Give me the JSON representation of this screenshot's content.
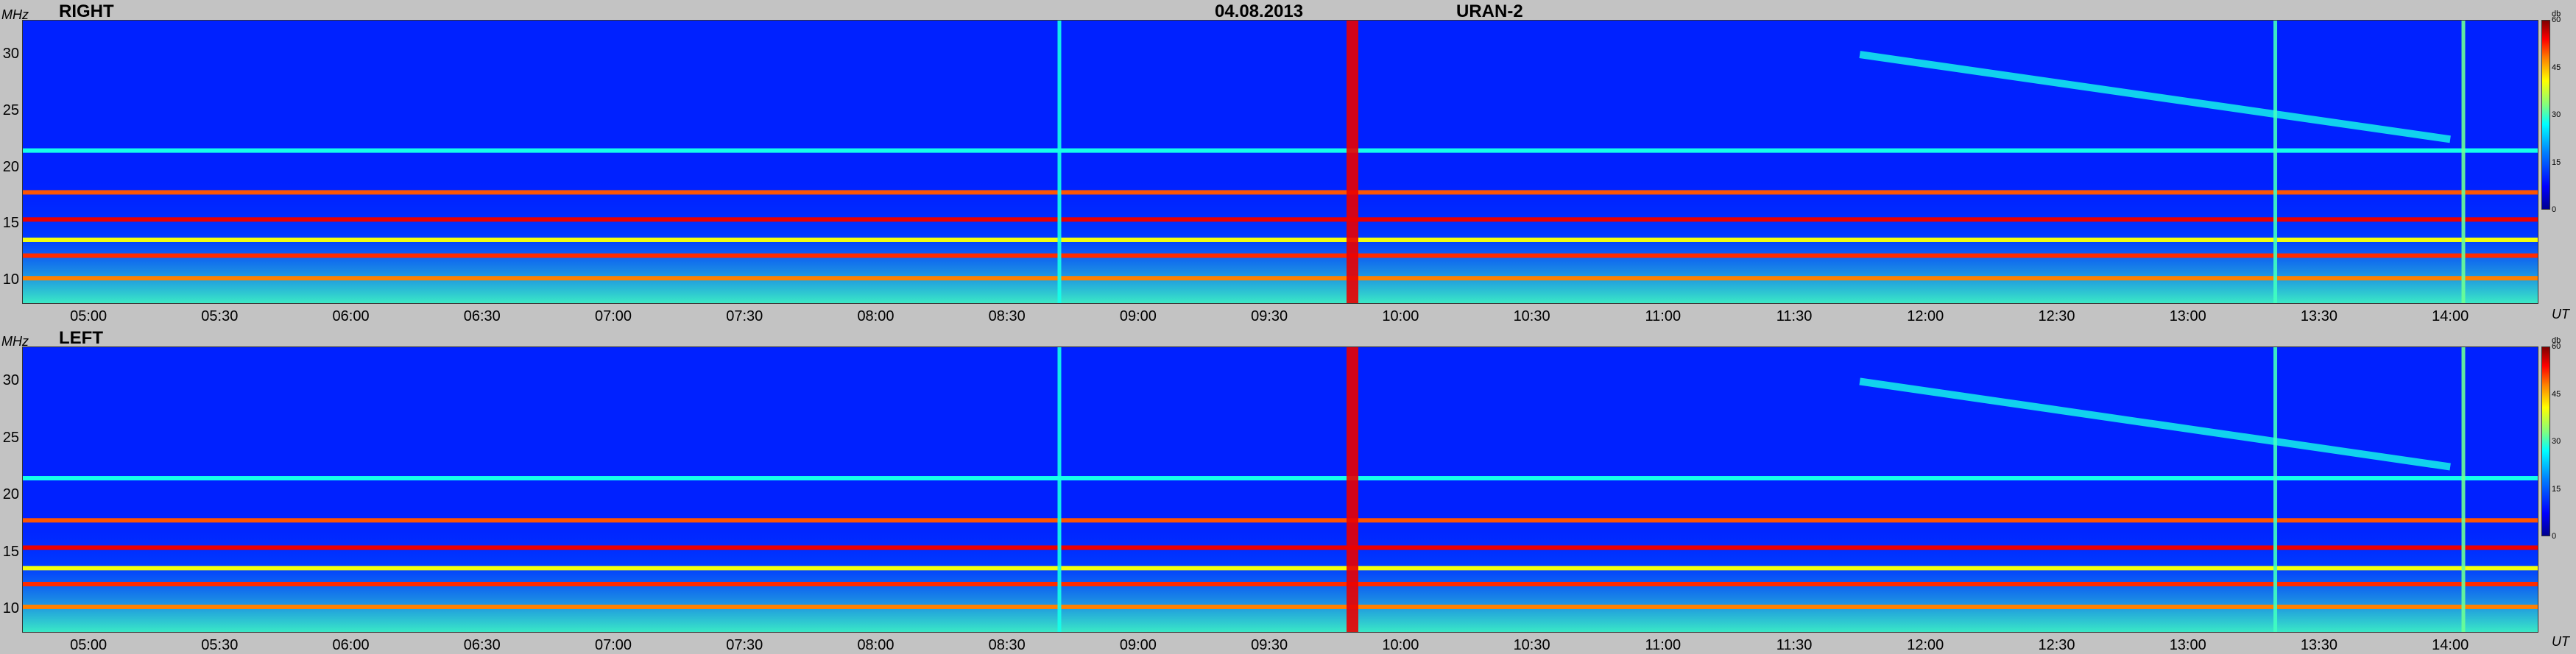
{
  "header": {
    "date": "04.08.2013",
    "instrument": "URAN-2"
  },
  "axes": {
    "y_unit": "MHz",
    "x_unit": "UT",
    "colorbar_unit": "db",
    "y_ticks": [
      "10",
      "15",
      "20",
      "25",
      "30"
    ],
    "x_ticks": [
      "05:00",
      "05:30",
      "06:00",
      "06:30",
      "07:00",
      "07:30",
      "08:00",
      "08:30",
      "09:00",
      "09:30",
      "10:00",
      "10:30",
      "11:00",
      "11:30",
      "12:00",
      "12:30",
      "13:00",
      "13:30",
      "14:00"
    ],
    "colorbar_ticks": [
      "0",
      "15",
      "30",
      "45",
      "60"
    ]
  },
  "chart_data": [
    {
      "type": "heatmap",
      "title": "RIGHT",
      "xlabel": "UT",
      "ylabel": "MHz",
      "x_range": [
        "04:45",
        "14:20"
      ],
      "ylim": [
        8,
        33
      ],
      "colorbar": {
        "label": "db",
        "range": [
          0,
          60
        ],
        "ticks": [
          0,
          15,
          30,
          45,
          60
        ]
      },
      "background_level_db": 10,
      "horizontal_bands": [
        {
          "freq_mhz": 10.2,
          "level_db": 48
        },
        {
          "freq_mhz": 12.2,
          "level_db": 52
        },
        {
          "freq_mhz": 13.6,
          "level_db": 40
        },
        {
          "freq_mhz": 15.4,
          "level_db": 55
        },
        {
          "freq_mhz": 17.8,
          "level_db": 50
        },
        {
          "freq_mhz": 21.5,
          "level_db": 28
        }
      ],
      "vertical_bursts": [
        {
          "time": "09:49",
          "level_db": 55
        },
        {
          "time": "08:42",
          "level_db": 28
        },
        {
          "time": "13:20",
          "level_db": 30
        },
        {
          "time": "14:03",
          "level_db": 32
        }
      ],
      "drifting_feature": {
        "start_time": "11:45",
        "end_time": "14:00",
        "start_freq_mhz": 30,
        "end_freq_mhz": 22.5,
        "level_db": 28
      }
    },
    {
      "type": "heatmap",
      "title": "LEFT",
      "xlabel": "UT",
      "ylabel": "MHz",
      "x_range": [
        "04:45",
        "14:20"
      ],
      "ylim": [
        8,
        33
      ],
      "colorbar": {
        "label": "db",
        "range": [
          0,
          60
        ],
        "ticks": [
          0,
          15,
          30,
          45,
          60
        ]
      },
      "background_level_db": 10,
      "horizontal_bands": [
        {
          "freq_mhz": 10.2,
          "level_db": 48
        },
        {
          "freq_mhz": 12.2,
          "level_db": 52
        },
        {
          "freq_mhz": 13.6,
          "level_db": 40
        },
        {
          "freq_mhz": 15.4,
          "level_db": 55
        },
        {
          "freq_mhz": 17.8,
          "level_db": 50
        },
        {
          "freq_mhz": 21.5,
          "level_db": 28
        }
      ],
      "vertical_bursts": [
        {
          "time": "09:49",
          "level_db": 55
        },
        {
          "time": "08:42",
          "level_db": 28
        },
        {
          "time": "13:20",
          "level_db": 30
        },
        {
          "time": "14:03",
          "level_db": 32
        }
      ],
      "drifting_feature": {
        "start_time": "11:45",
        "end_time": "14:00",
        "start_freq_mhz": 30,
        "end_freq_mhz": 22.5,
        "level_db": 28
      }
    }
  ]
}
